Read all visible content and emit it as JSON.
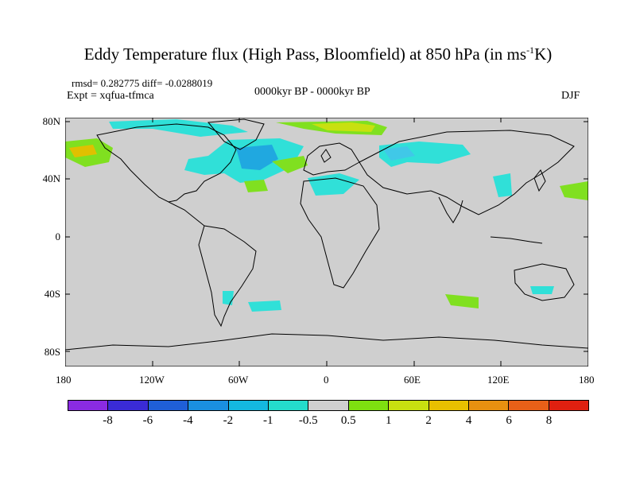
{
  "title": {
    "main": "Eddy Temperature flux (High Pass, Bloomfield) at 850 hPa (in ms",
    "sup": "-1",
    "end": "K)"
  },
  "stats": "rmsd= 0.282775 diff= -0.0288019",
  "expt": "Expt = xqfua-tfmca",
  "period": "0000kyr BP - 0000kyr BP",
  "season": "DJF",
  "x_ticks": [
    "180",
    "120W",
    "60W",
    "0",
    "60E",
    "120E",
    "180"
  ],
  "y_ticks": [
    "80N",
    "40N",
    "0",
    "40S",
    "80S"
  ],
  "colorbar": {
    "labels": [
      "-8",
      "-6",
      "-4",
      "-2",
      "-1",
      "-0.5",
      "0.5",
      "1",
      "2",
      "4",
      "6",
      "8"
    ],
    "colors": [
      "#8a2be2",
      "#3a2bd6",
      "#1f5fd8",
      "#1a8fe0",
      "#14b8e0",
      "#24dccc",
      "#cfcfcf",
      "#7ee010",
      "#c8e010",
      "#e8c000",
      "#e89010",
      "#e86018",
      "#e02010"
    ]
  },
  "colors": {
    "land_bg": "#cfcfcf",
    "cyan": "#30e0d8",
    "lightblue": "#40c8e8",
    "blue": "#20a8e0",
    "green": "#80e020",
    "yellow": "#c8e010",
    "orange": "#e0c000"
  }
}
